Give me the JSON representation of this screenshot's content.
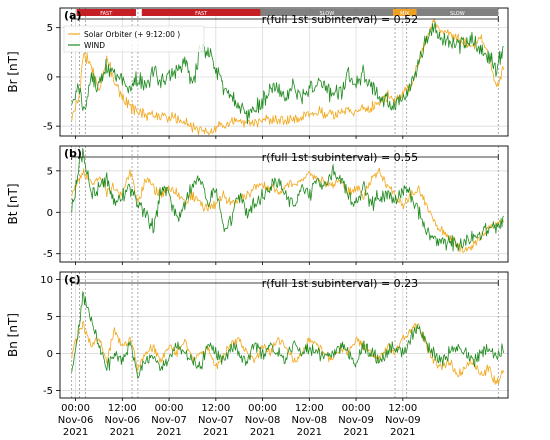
{
  "colors": {
    "solo": "#f2a81d",
    "wind": "#1f8a1f",
    "fast": "#c41f25",
    "slow": "#808080",
    "mix": "#f0a020",
    "grid": "#d6d6d6",
    "bracket": "#000000",
    "vline": "#8a8a8a"
  },
  "chart_data": [
    {
      "type": "line",
      "panel_label": "(a)",
      "ylabel": "Br [nT]",
      "ylim": [
        -6,
        7
      ],
      "yticks": [
        -5,
        0,
        5
      ],
      "correlation_label": "r(full 1st subinterval) = 0.52",
      "legend": [
        "Solar Orbiter (+ 9:12:00 )",
        "WIND"
      ],
      "legend_position": "top-left",
      "speed_bands": [
        {
          "label": "FAST",
          "start": 0.25,
          "end": 15.5,
          "type": "fast"
        },
        {
          "label": "FAST",
          "start": 17.0,
          "end": 47.5,
          "type": "fast"
        },
        {
          "label": "SLOW",
          "start": 47.5,
          "end": 81.5,
          "type": "slow"
        },
        {
          "label": "MIX",
          "start": 81.5,
          "end": 87.5,
          "type": "mix"
        },
        {
          "label": "SLOW",
          "start": 87.5,
          "end": 108.5,
          "type": "slow"
        }
      ],
      "series": [
        {
          "name": "Solar Orbiter (+ 9:12:00 )",
          "key": "solo",
          "x": [
            -1,
            1,
            2,
            4,
            6,
            8,
            10,
            12,
            14,
            16,
            18,
            20,
            22,
            24,
            26,
            28,
            30,
            32,
            34,
            36,
            38,
            40,
            42,
            44,
            46,
            48,
            50,
            52,
            54,
            56,
            58,
            60,
            62,
            64,
            66,
            68,
            70,
            72,
            74,
            76,
            78,
            80,
            82,
            84,
            86,
            88,
            90,
            92,
            94,
            96,
            98,
            100,
            102,
            104,
            106,
            108,
            110
          ],
          "values": [
            -4,
            -2,
            2.5,
            1,
            -1,
            2,
            -0.5,
            -2,
            -3,
            -3.5,
            -3.8,
            -3.9,
            -4,
            -4.2,
            -4.3,
            -4.6,
            -5.2,
            -5.5,
            -5.8,
            -5.3,
            -4.8,
            -4.5,
            -4.6,
            -5,
            -4.7,
            -4.5,
            -4.5,
            -4.4,
            -4.3,
            -4.5,
            -4.2,
            -3.8,
            -3.6,
            -3.8,
            -3.9,
            -3.6,
            -3.5,
            -3.8,
            -3.3,
            -3.2,
            -2.5,
            -2,
            -2.5,
            -1.5,
            -1,
            1.5,
            4,
            5.5,
            4.5,
            4.5,
            4,
            3.5,
            3,
            4,
            2,
            -1,
            1
          ]
        },
        {
          "name": "WIND",
          "key": "wind",
          "x": [
            -1,
            1,
            2,
            4,
            6,
            8,
            10,
            12,
            14,
            16,
            18,
            20,
            22,
            24,
            26,
            28,
            30,
            32,
            34,
            36,
            38,
            40,
            42,
            44,
            46,
            48,
            50,
            52,
            54,
            56,
            58,
            60,
            62,
            64,
            66,
            68,
            70,
            72,
            74,
            76,
            78,
            80,
            82,
            84,
            86,
            88,
            90,
            92,
            94,
            96,
            98,
            100,
            102,
            104,
            106,
            108,
            110
          ],
          "values": [
            -3,
            -1,
            -4,
            0,
            -1,
            1,
            0.5,
            -0.5,
            -1,
            0,
            -1,
            0.5,
            -0.5,
            0,
            0.5,
            2,
            -1,
            3,
            2.5,
            1,
            -1,
            -2,
            -3,
            -4,
            -3,
            -2.5,
            -1,
            -1.5,
            -2,
            -1,
            -2,
            -1.5,
            -0.5,
            -1,
            -2,
            -1.5,
            0,
            -1,
            0.5,
            -1,
            -2,
            -2.5,
            -3,
            -2,
            -1,
            1,
            4,
            5,
            4,
            3.5,
            3,
            3.5,
            4,
            3,
            2,
            1,
            3
          ]
        }
      ]
    },
    {
      "type": "line",
      "panel_label": "(b)",
      "ylabel": "Bt [nT]",
      "ylim": [
        -6,
        8
      ],
      "yticks": [
        -5,
        0,
        5
      ],
      "correlation_label": "r(full 1st subinterval) = 0.55",
      "series": [
        {
          "name": "Solar Orbiter (+ 9:12:00 )",
          "key": "solo",
          "x": [
            -1,
            1,
            2,
            4,
            6,
            8,
            10,
            12,
            14,
            16,
            18,
            20,
            22,
            24,
            26,
            28,
            30,
            32,
            34,
            36,
            38,
            40,
            42,
            44,
            46,
            48,
            50,
            52,
            54,
            56,
            58,
            60,
            62,
            64,
            66,
            68,
            70,
            72,
            74,
            76,
            78,
            80,
            82,
            84,
            86,
            88,
            90,
            92,
            94,
            96,
            98,
            100,
            102,
            104,
            106,
            108,
            110
          ],
          "values": [
            2,
            4,
            5,
            3.5,
            4,
            2.5,
            3,
            2,
            5,
            1,
            4,
            3,
            2,
            3,
            2.5,
            1,
            2,
            1,
            0.5,
            1,
            2,
            1,
            1.5,
            2,
            3,
            3.5,
            3,
            2.5,
            3,
            3.5,
            4,
            4.5,
            4,
            3.5,
            3,
            4,
            2.5,
            3,
            2,
            4,
            5,
            3,
            2,
            1,
            2,
            3,
            1,
            -1,
            -2,
            -3,
            -4,
            -4.5,
            -4,
            -3,
            -2,
            -1.5,
            -1
          ]
        },
        {
          "name": "WIND",
          "key": "wind",
          "x": [
            -1,
            1,
            2,
            4,
            6,
            8,
            10,
            12,
            14,
            16,
            18,
            20,
            22,
            24,
            26,
            28,
            30,
            32,
            34,
            36,
            38,
            40,
            42,
            44,
            46,
            48,
            50,
            52,
            54,
            56,
            58,
            60,
            62,
            64,
            66,
            68,
            70,
            72,
            74,
            76,
            78,
            80,
            82,
            84,
            86,
            88,
            90,
            92,
            94,
            96,
            98,
            100,
            102,
            104,
            106,
            108,
            110
          ],
          "values": [
            0,
            6,
            7,
            2,
            3,
            4,
            1,
            2,
            3,
            1,
            0,
            -2,
            3,
            2,
            -1,
            1,
            3,
            4,
            1,
            3,
            -2,
            -1,
            2,
            0,
            1,
            2,
            3,
            4,
            2,
            1,
            3,
            2,
            4,
            3,
            5,
            4,
            2,
            1,
            3,
            1,
            2,
            2,
            1,
            3,
            2,
            0,
            -2,
            -3,
            -4,
            -3.5,
            -4,
            -3.8,
            -3,
            -2.5,
            -2,
            -1.5,
            -1
          ]
        }
      ]
    },
    {
      "type": "line",
      "panel_label": "(c)",
      "ylabel": "Bn [nT]",
      "ylim": [
        -6,
        11
      ],
      "yticks": [
        -5,
        0,
        5,
        10
      ],
      "correlation_label": "r(full 1st subinterval) = 0.23",
      "series": [
        {
          "name": "Solar Orbiter (+ 9:12:00 )",
          "key": "solo",
          "x": [
            -1,
            1,
            2,
            4,
            6,
            8,
            10,
            12,
            14,
            16,
            18,
            20,
            22,
            24,
            26,
            28,
            30,
            32,
            34,
            36,
            38,
            40,
            42,
            44,
            46,
            48,
            50,
            52,
            54,
            56,
            58,
            60,
            62,
            64,
            66,
            68,
            70,
            72,
            74,
            76,
            78,
            80,
            82,
            84,
            86,
            88,
            90,
            92,
            94,
            96,
            98,
            100,
            102,
            104,
            106,
            108,
            110
          ],
          "values": [
            0,
            3,
            4,
            1,
            2,
            -1,
            3,
            1,
            2,
            -2,
            0,
            1,
            -1,
            1,
            0,
            2,
            -1,
            0,
            1,
            -2,
            0,
            1,
            2,
            0,
            -1,
            1,
            0,
            2,
            1,
            -1,
            0,
            2,
            1,
            0,
            -1,
            1,
            0,
            2,
            1,
            0,
            -1,
            1,
            0,
            2,
            3,
            4,
            1,
            -1,
            -2,
            -1,
            -3,
            -2,
            -1,
            -3,
            -2,
            -4,
            -2
          ]
        },
        {
          "name": "WIND",
          "key": "wind",
          "x": [
            -1,
            1,
            2,
            4,
            6,
            8,
            10,
            12,
            14,
            16,
            18,
            20,
            22,
            24,
            26,
            28,
            30,
            32,
            34,
            36,
            38,
            40,
            42,
            44,
            46,
            48,
            50,
            52,
            54,
            56,
            58,
            60,
            62,
            64,
            66,
            68,
            70,
            72,
            74,
            76,
            78,
            80,
            82,
            84,
            86,
            88,
            90,
            92,
            94,
            96,
            98,
            100,
            102,
            104,
            106,
            108,
            110
          ],
          "values": [
            -2,
            4,
            8,
            5,
            1,
            -2,
            0,
            -1,
            1,
            -3,
            -1,
            0,
            -2,
            -1,
            1,
            0,
            -1,
            -2,
            1,
            0,
            -1,
            1,
            0,
            -1,
            1,
            0,
            1,
            0,
            -1,
            1,
            0,
            1,
            0,
            -1,
            0,
            1,
            0,
            -1,
            1,
            0,
            -1,
            0,
            1,
            0,
            2,
            4,
            1,
            0,
            -1,
            0,
            1,
            0,
            -1,
            0,
            0.5,
            0,
            0.5
          ]
        }
      ]
    }
  ],
  "x_axis": {
    "xlim": [
      -4,
      111
    ],
    "ticks": [
      {
        "x": 0,
        "line1": "00:00",
        "line2": "Nov-06",
        "line3": "2021"
      },
      {
        "x": 12,
        "line1": "12:00",
        "line2": "Nov-06",
        "line3": "2021"
      },
      {
        "x": 24,
        "line1": "00:00",
        "line2": "Nov-07",
        "line3": "2021"
      },
      {
        "x": 36,
        "line1": "12:00",
        "line2": "Nov-07",
        "line3": "2021"
      },
      {
        "x": 48,
        "line1": "00:00",
        "line2": "Nov-08",
        "line3": "2021"
      },
      {
        "x": 60,
        "line1": "12:00",
        "line2": "Nov-08",
        "line3": "2021"
      },
      {
        "x": 72,
        "line1": "00:00",
        "line2": "Nov-09",
        "line3": "2021"
      },
      {
        "x": 84,
        "line1": "12:00",
        "line2": "Nov-09",
        "line3": "2021"
      }
    ],
    "dotted_markers": [
      -1,
      1,
      2.5,
      14.5,
      16,
      82,
      85,
      108.5
    ],
    "bracket_range": [
      -1,
      108.5
    ]
  }
}
